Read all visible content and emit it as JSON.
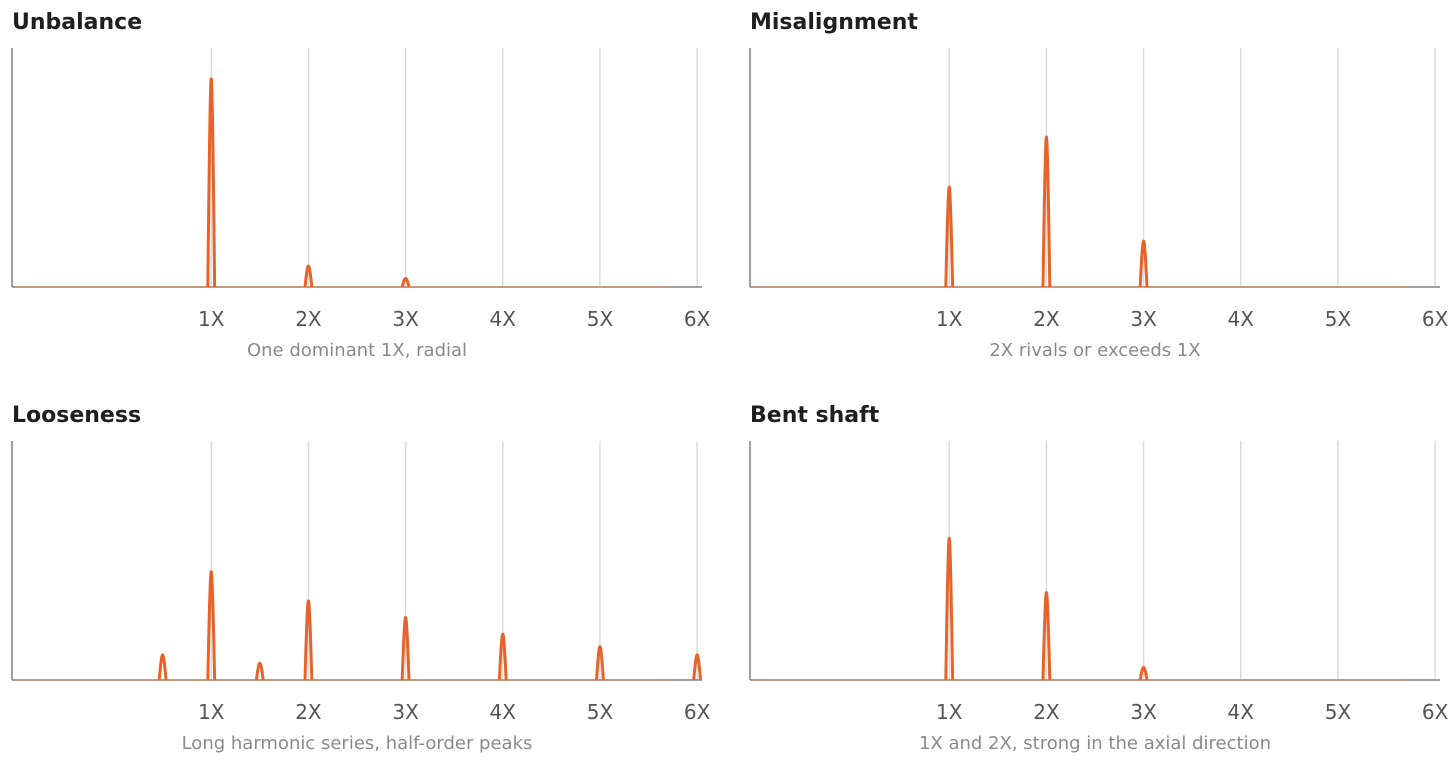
{
  "chart_data": [
    {
      "type": "line",
      "title": "Unbalance",
      "caption": "One dominant 1X, radial",
      "x_ticks": [
        {
          "x": 1,
          "label": "1X"
        },
        {
          "x": 2,
          "label": "2X"
        },
        {
          "x": 3,
          "label": "3X"
        },
        {
          "x": 4,
          "label": "4X"
        },
        {
          "x": 5,
          "label": "5X"
        },
        {
          "x": 6,
          "label": "6X"
        }
      ],
      "xlim": [
        -1.05,
        6.05
      ],
      "ylim": [
        0,
        1.1
      ],
      "x_range": [
        -1.0,
        5.7
      ],
      "grid": "vertical",
      "series_color": "#e8632a",
      "peaks": [
        {
          "x": 1,
          "amplitude": 1.0
        },
        {
          "x": 2,
          "amplitude": 0.1
        },
        {
          "x": 3,
          "amplitude": 0.04
        }
      ]
    },
    {
      "type": "line",
      "title": "Misalignment",
      "caption": "2X rivals or exceeds 1X",
      "x_ticks": [
        {
          "x": 1,
          "label": "1X"
        },
        {
          "x": 2,
          "label": "2X"
        },
        {
          "x": 3,
          "label": "3X"
        },
        {
          "x": 4,
          "label": "4X"
        },
        {
          "x": 5,
          "label": "5X"
        },
        {
          "x": 6,
          "label": "6X"
        }
      ],
      "xlim": [
        -1.05,
        6.05
      ],
      "ylim": [
        0,
        1.1
      ],
      "x_range": [
        -1.0,
        5.7
      ],
      "grid": "vertical",
      "series_color": "#e8632a",
      "peaks": [
        {
          "x": 1,
          "amplitude": 0.48
        },
        {
          "x": 2,
          "amplitude": 0.72
        },
        {
          "x": 3,
          "amplitude": 0.22
        }
      ]
    },
    {
      "type": "line",
      "title": "Looseness",
      "caption": "Long harmonic series, half-order peaks",
      "x_ticks": [
        {
          "x": 1,
          "label": "1X"
        },
        {
          "x": 2,
          "label": "2X"
        },
        {
          "x": 3,
          "label": "3X"
        },
        {
          "x": 4,
          "label": "4X"
        },
        {
          "x": 5,
          "label": "5X"
        },
        {
          "x": 6,
          "label": "6X"
        }
      ],
      "xlim": [
        -1.05,
        6.05
      ],
      "ylim": [
        0,
        1.1
      ],
      "x_range": [
        -1.0,
        5.7
      ],
      "grid": "vertical",
      "series_color": "#e8632a",
      "peaks": [
        {
          "x": 0.5,
          "amplitude": 0.12
        },
        {
          "x": 1,
          "amplitude": 0.52
        },
        {
          "x": 1.5,
          "amplitude": 0.08
        },
        {
          "x": 2,
          "amplitude": 0.38
        },
        {
          "x": 3,
          "amplitude": 0.3
        },
        {
          "x": 4,
          "amplitude": 0.22
        },
        {
          "x": 5,
          "amplitude": 0.16
        },
        {
          "x": 6,
          "amplitude": 0.12
        }
      ]
    },
    {
      "type": "line",
      "title": "Bent shaft",
      "caption": "1X and 2X, strong in the axial direction",
      "x_ticks": [
        {
          "x": 1,
          "label": "1X"
        },
        {
          "x": 2,
          "label": "2X"
        },
        {
          "x": 3,
          "label": "3X"
        },
        {
          "x": 4,
          "label": "4X"
        },
        {
          "x": 5,
          "label": "5X"
        },
        {
          "x": 6,
          "label": "6X"
        }
      ],
      "xlim": [
        -1.05,
        6.05
      ],
      "ylim": [
        0,
        1.1
      ],
      "x_range": [
        -1.0,
        5.7
      ],
      "grid": "vertical",
      "series_color": "#e8632a",
      "peaks": [
        {
          "x": 1,
          "amplitude": 0.68
        },
        {
          "x": 2,
          "amplitude": 0.42
        },
        {
          "x": 3,
          "amplitude": 0.06
        }
      ]
    }
  ]
}
